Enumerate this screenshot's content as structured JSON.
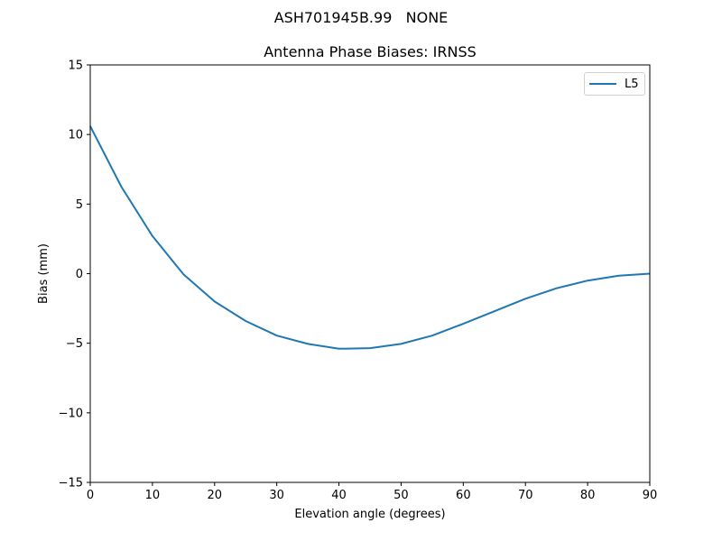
{
  "figure": {
    "suptitle": "ASH701945B.99   NONE",
    "title": "Antenna Phase Biases: IRNSS",
    "xlabel": "Elevation angle (degrees)",
    "ylabel": "Bias (mm)",
    "line_color": "#1f77b4",
    "legend": [
      {
        "label": "L5",
        "color": "#1f77b4"
      }
    ]
  },
  "chart_data": {
    "type": "line",
    "title": "Antenna Phase Biases: IRNSS",
    "suptitle": "ASH701945B.99   NONE",
    "xlabel": "Elevation angle (degrees)",
    "ylabel": "Bias (mm)",
    "xlim": [
      0,
      90
    ],
    "ylim": [
      -15,
      15
    ],
    "xticks": [
      0,
      10,
      20,
      30,
      40,
      50,
      60,
      70,
      80,
      90
    ],
    "yticks": [
      -15,
      -10,
      -5,
      0,
      5,
      10,
      15
    ],
    "ytick_labels": [
      "−15",
      "−10",
      "−5",
      "0",
      "5",
      "10",
      "15"
    ],
    "grid": false,
    "legend_position": "upper right",
    "x": [
      0,
      5,
      10,
      15,
      20,
      25,
      30,
      35,
      40,
      45,
      50,
      55,
      60,
      65,
      70,
      75,
      80,
      85,
      90
    ],
    "series": [
      {
        "name": "L5",
        "color": "#1f77b4",
        "values": [
          10.6,
          6.25,
          2.7,
          -0.05,
          -2.0,
          -3.4,
          -4.45,
          -5.05,
          -5.4,
          -5.35,
          -5.05,
          -4.45,
          -3.6,
          -2.7,
          -1.8,
          -1.05,
          -0.5,
          -0.15,
          0.0
        ]
      }
    ]
  }
}
